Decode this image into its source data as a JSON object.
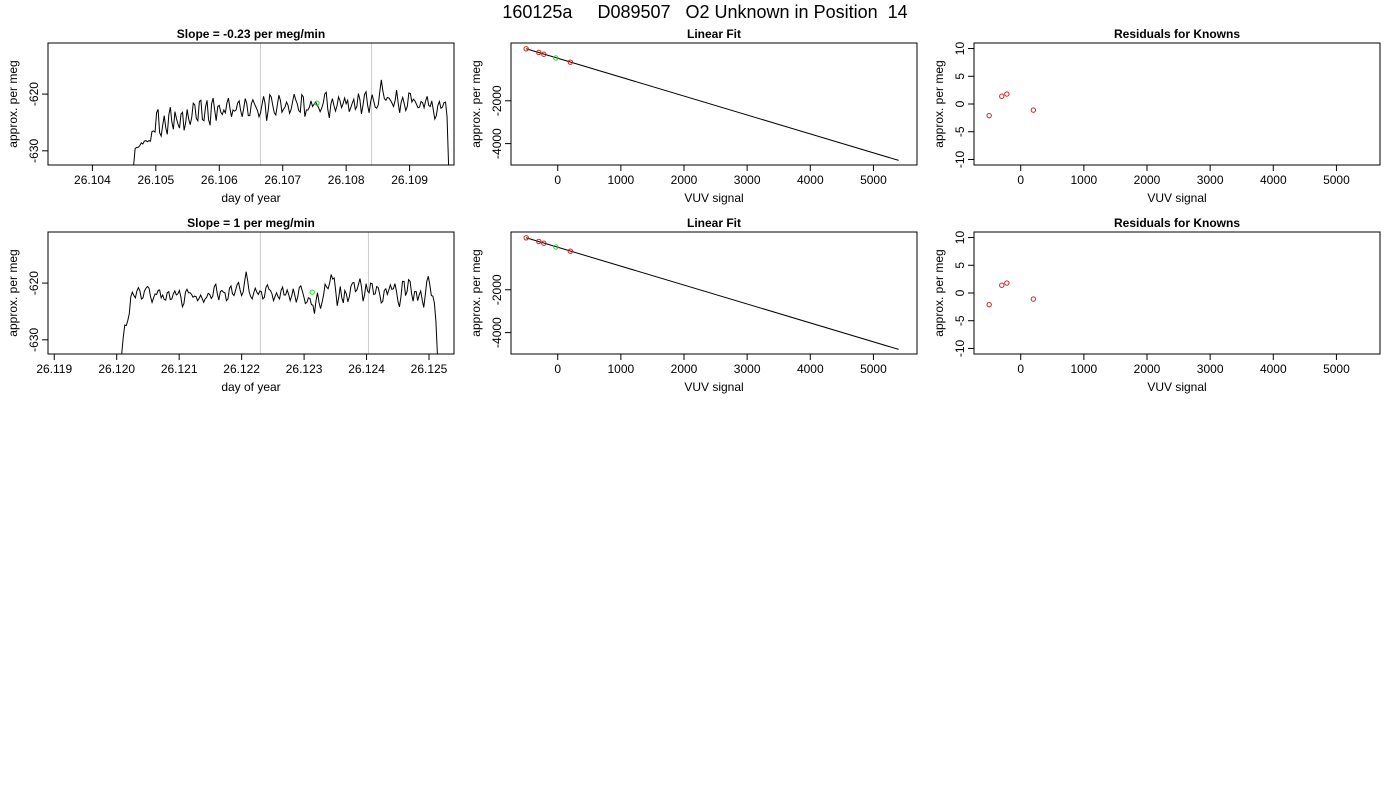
{
  "page_title": "160125a     D089507   O2 Unknown in Position  14",
  "colors": {
    "line": "#000000",
    "known_point": "#cc2222",
    "unknown_point": "#22dd22",
    "marker_line": "#cccccc",
    "frame": "#000000"
  },
  "chart_data": [
    {
      "id": "trace-1",
      "type": "line",
      "title": "Slope =  -0.23  per meg/min",
      "xlabel": "day of year",
      "ylabel": "approx. per meg",
      "xlim": [
        26.1033,
        26.1097
      ],
      "ylim": [
        -632.5,
        -611
      ],
      "xticks": [
        26.104,
        26.105,
        26.106,
        26.107,
        26.108,
        26.109
      ],
      "xtick_labels": [
        "26.104",
        "26.105",
        "26.106",
        "26.107",
        "26.108",
        "26.109"
      ],
      "yticks": [
        -620,
        -630
      ],
      "ytick_labels": [
        "-620",
        "-630"
      ],
      "markers_x": [
        26.10665,
        26.1084
      ],
      "series": [
        {
          "x_start": 26.10465,
          "x_step": 2.41e-05,
          "y_start": -632.5,
          "y": [
            -632.5,
            -629.6,
            -629.4,
            -629.4,
            -629.1,
            -628.6,
            -628.8,
            -628.3,
            -628.2,
            -628.4,
            -628.2,
            -628.3,
            -626.6,
            -626.5,
            -626.7,
            -623.3,
            -622.7,
            -626.8,
            -627.4,
            -625.5,
            -623.8,
            -625.9,
            -627.1,
            -623.7,
            -622.3,
            -624.9,
            -626.2,
            -623.1,
            -624.3,
            -625.3,
            -626.0,
            -623.5,
            -623.2,
            -626.4,
            -625.1,
            -622.7,
            -624.4,
            -625.4,
            -624.1,
            -621.6,
            -621.9,
            -624.3,
            -624.7,
            -621.3,
            -621.1,
            -624.5,
            -624.7,
            -622.3,
            -621.1,
            -624.5,
            -625.5,
            -621.7,
            -620.7,
            -622.8,
            -624.7,
            -622.2,
            -622.0,
            -623.2,
            -623.6,
            -622.8,
            -623.3,
            -621.6,
            -620.7,
            -622.5,
            -624.0,
            -622.8,
            -623.0,
            -622.8,
            -621.6,
            -621.2,
            -622.9,
            -624.0,
            -622.5,
            -620.8,
            -621.7,
            -623.8,
            -623.8,
            -621.7,
            -621.0,
            -621.7,
            -622.3,
            -622.9,
            -624.0,
            -623.3,
            -621.8,
            -620.4,
            -621.7,
            -624.7,
            -622.9,
            -620.1,
            -620.5,
            -622.0,
            -623.3,
            -623.7,
            -621.9,
            -620.2,
            -621.1,
            -623.2,
            -622.7,
            -622.3,
            -621.4,
            -622.0,
            -623.4,
            -622.7,
            -621.3,
            -620.0,
            -621.0,
            -621.7,
            -622.9,
            -623.2,
            -620.1,
            -620.5,
            -624.0,
            -622.8,
            -622.8,
            -622.3,
            -621.2,
            -622.2,
            -621.8,
            -621.4,
            -621.9,
            -622.4,
            -623.1,
            -622.5,
            -621.6,
            -620.0,
            -619.7,
            -622.7,
            -624.2,
            -621.8,
            -620.8,
            -622.0,
            -623.0,
            -622.1,
            -620.5,
            -621.2,
            -622.4,
            -621.7,
            -620.7,
            -621.7,
            -621.1,
            -623.1,
            -622.4,
            -621.6,
            -620.9,
            -622.7,
            -622.2,
            -619.9,
            -621.0,
            -623.5,
            -622.0,
            -620.1,
            -619.6,
            -621.9,
            -623.3,
            -621.4,
            -620.1,
            -621.2,
            -622.3,
            -622.5,
            -621.9,
            -619.6,
            -617.5,
            -619.4,
            -620.8,
            -621.1,
            -620.6,
            -620.7,
            -621.1,
            -621.6,
            -622.2,
            -621.2,
            -619.3,
            -621.5,
            -623.3,
            -621.4,
            -620.6,
            -621.7,
            -622.9,
            -622.2,
            -619.8,
            -619.9,
            -621.4,
            -620.9,
            -621.2,
            -621.8,
            -622.4,
            -622.3,
            -621.3,
            -621.5,
            -622.4,
            -621.2,
            -620.4,
            -622.0,
            -622.2,
            -621.2,
            -622.8,
            -624.4,
            -623.8,
            -622.0,
            -621.3,
            -622.5,
            -622.3,
            -621.5,
            -621.4,
            -624.0,
            -632.5
          ]
        }
      ],
      "highlight": {
        "x": 26.10754,
        "y": -621.6
      }
    },
    {
      "id": "fit-1",
      "type": "scatter",
      "title": "Linear Fit",
      "xlabel": "VUV signal",
      "ylabel": "approx. per meg",
      "xlim": [
        -740,
        5690
      ],
      "ylim": [
        -5000,
        700
      ],
      "xticks": [
        0,
        1000,
        2000,
        3000,
        4000,
        5000
      ],
      "xtick_labels": [
        "0",
        "1000",
        "2000",
        "3000",
        "4000",
        "5000"
      ],
      "yticks": [
        -2000,
        -4000
      ],
      "ytick_labels": [
        "-2000",
        "-4000"
      ],
      "fit_line": {
        "x": [
          -500,
          5400
        ],
        "y": [
          430,
          -4785
        ]
      },
      "knowns": {
        "x": [
          -500,
          -300,
          -220,
          200
        ],
        "y": [
          430,
          260,
          175,
          -195
        ]
      },
      "unknown": {
        "x": -30,
        "y": 0
      }
    },
    {
      "id": "resid-1",
      "type": "scatter",
      "title": "Residuals for Knowns",
      "xlabel": "VUV signal",
      "ylabel": "approx. per meg",
      "xlim": [
        -740,
        5690
      ],
      "ylim": [
        -11,
        11
      ],
      "xticks": [
        0,
        1000,
        2000,
        3000,
        4000,
        5000
      ],
      "xtick_labels": [
        "0",
        "1000",
        "2000",
        "3000",
        "4000",
        "5000"
      ],
      "yticks": [
        -10,
        -5,
        0,
        5,
        10
      ],
      "ytick_labels": [
        "-10",
        "-5",
        "0",
        "5",
        "10"
      ],
      "knowns": {
        "x": [
          -500,
          -300,
          -220,
          200
        ],
        "y": [
          -2.1,
          1.4,
          1.8,
          -1.1
        ]
      }
    },
    {
      "id": "trace-2",
      "type": "line",
      "title": "Slope =  1  per meg/min",
      "xlabel": "day of year",
      "ylabel": "approx. per meg",
      "xlim": [
        26.1189,
        26.1254
      ],
      "ylim": [
        -632.5,
        -611
      ],
      "xticks": [
        26.119,
        26.12,
        26.121,
        26.122,
        26.123,
        26.124,
        26.125
      ],
      "xtick_labels": [
        "26.119",
        "26.120",
        "26.121",
        "26.122",
        "26.123",
        "26.124",
        "26.125"
      ],
      "yticks": [
        -620,
        -630
      ],
      "ytick_labels": [
        "-620",
        "-630"
      ],
      "markers_x": [
        26.1223,
        26.12403
      ],
      "series": [
        {
          "x_start": 26.12008,
          "x_step": 2.43e-05,
          "y_start": -632.5,
          "y": [
            -632.5,
            -629.6,
            -627.4,
            -627.5,
            -626.6,
            -625.4,
            -622.4,
            -621.6,
            -622.2,
            -622.6,
            -621.4,
            -620.8,
            -621.4,
            -622.8,
            -622.6,
            -621.4,
            -620.9,
            -620.6,
            -620.9,
            -622.4,
            -623.4,
            -622.6,
            -621.9,
            -622.0,
            -621.3,
            -621.2,
            -622.6,
            -622.1,
            -622.9,
            -623.0,
            -621.7,
            -621.5,
            -622.9,
            -622.8,
            -621.9,
            -621.4,
            -622.1,
            -621.9,
            -621.3,
            -622.5,
            -624.2,
            -623.6,
            -621.6,
            -621.1,
            -621.7,
            -621.7,
            -622.0,
            -622.5,
            -622.3,
            -622.4,
            -623.1,
            -622.7,
            -622.1,
            -622.7,
            -623.4,
            -622.8,
            -622.5,
            -621.8,
            -622.0,
            -622.7,
            -622.3,
            -620.6,
            -620.2,
            -621.9,
            -623.0,
            -621.5,
            -621.3,
            -621.6,
            -621.7,
            -623.1,
            -622.8,
            -620.9,
            -620.5,
            -621.9,
            -622.2,
            -621.3,
            -620.3,
            -619.9,
            -621.2,
            -622.2,
            -621.6,
            -619.7,
            -618.0,
            -619.6,
            -621.6,
            -622.4,
            -622.8,
            -621.7,
            -620.9,
            -621.6,
            -622.0,
            -621.4,
            -621.5,
            -622.8,
            -622.5,
            -620.8,
            -620.3,
            -621.1,
            -621.3,
            -621.9,
            -623.1,
            -622.4,
            -621.7,
            -622.4,
            -622.8,
            -621.3,
            -620.7,
            -622.1,
            -622.1,
            -621.2,
            -622.0,
            -623.1,
            -622.3,
            -621.0,
            -622.1,
            -623.4,
            -622.4,
            -620.8,
            -620.5,
            -621.4,
            -622.4,
            -623.6,
            -623.4,
            -622.6,
            -622.7,
            -623.8,
            -623.9,
            -625.4,
            -623.1,
            -621.7,
            -623.4,
            -624.5,
            -623.4,
            -622.1,
            -620.2,
            -620.7,
            -621.0,
            -620.0,
            -618.5,
            -619.3,
            -619.1,
            -621.4,
            -624.0,
            -622.5,
            -620.6,
            -622.6,
            -623.5,
            -621.3,
            -621.9,
            -623.3,
            -622.4,
            -620.6,
            -620.0,
            -619.9,
            -621.5,
            -621.2,
            -620.2,
            -619.2,
            -620.7,
            -623.2,
            -622.1,
            -620.1,
            -621.4,
            -621.7,
            -620.0,
            -620.1,
            -622.0,
            -621.9,
            -620.6,
            -620.8,
            -622.0,
            -623.5,
            -623.2,
            -621.3,
            -621.0,
            -622.0,
            -621.2,
            -620.3,
            -621.1,
            -621.0,
            -620.1,
            -621.4,
            -623.2,
            -624.2,
            -622.4,
            -619.7,
            -619.7,
            -622.2,
            -621.5,
            -619.4,
            -619.7,
            -621.9,
            -623.2,
            -621.5,
            -621.5,
            -623.1,
            -622.1,
            -621.4,
            -623.0,
            -624.3,
            -622.1,
            -619.7,
            -618.8,
            -620.3,
            -622.2,
            -622.3,
            -623.5,
            -626.7,
            -632.5
          ]
        }
      ],
      "highlight": {
        "x": 26.12313,
        "y": -621.6
      }
    },
    {
      "id": "fit-2",
      "type": "scatter",
      "title": "Linear Fit",
      "xlabel": "VUV signal",
      "ylabel": "approx. per meg",
      "xlim": [
        -740,
        5690
      ],
      "ylim": [
        -5000,
        700
      ],
      "xticks": [
        0,
        1000,
        2000,
        3000,
        4000,
        5000
      ],
      "xtick_labels": [
        "0",
        "1000",
        "2000",
        "3000",
        "4000",
        "5000"
      ],
      "yticks": [
        -2000,
        -4000
      ],
      "ytick_labels": [
        "-2000",
        "-4000"
      ],
      "fit_line": {
        "x": [
          -500,
          5400
        ],
        "y": [
          430,
          -4785
        ]
      },
      "knowns": {
        "x": [
          -500,
          -300,
          -220,
          200
        ],
        "y": [
          430,
          260,
          175,
          -195
        ]
      },
      "unknown": {
        "x": -30,
        "y": 0
      }
    },
    {
      "id": "resid-2",
      "type": "scatter",
      "title": "Residuals for Knowns",
      "xlabel": "VUV signal",
      "ylabel": "approx. per meg",
      "xlim": [
        -740,
        5690
      ],
      "ylim": [
        -11,
        11
      ],
      "xticks": [
        0,
        1000,
        2000,
        3000,
        4000,
        5000
      ],
      "xtick_labels": [
        "0",
        "1000",
        "2000",
        "3000",
        "4000",
        "5000"
      ],
      "yticks": [
        -10,
        -5,
        0,
        5,
        10
      ],
      "ytick_labels": [
        "-10",
        "-5",
        "0",
        "5",
        "10"
      ],
      "knowns": {
        "x": [
          -500,
          -300,
          -220,
          200
        ],
        "y": [
          -2.1,
          1.4,
          1.8,
          -1.1
        ]
      }
    }
  ]
}
